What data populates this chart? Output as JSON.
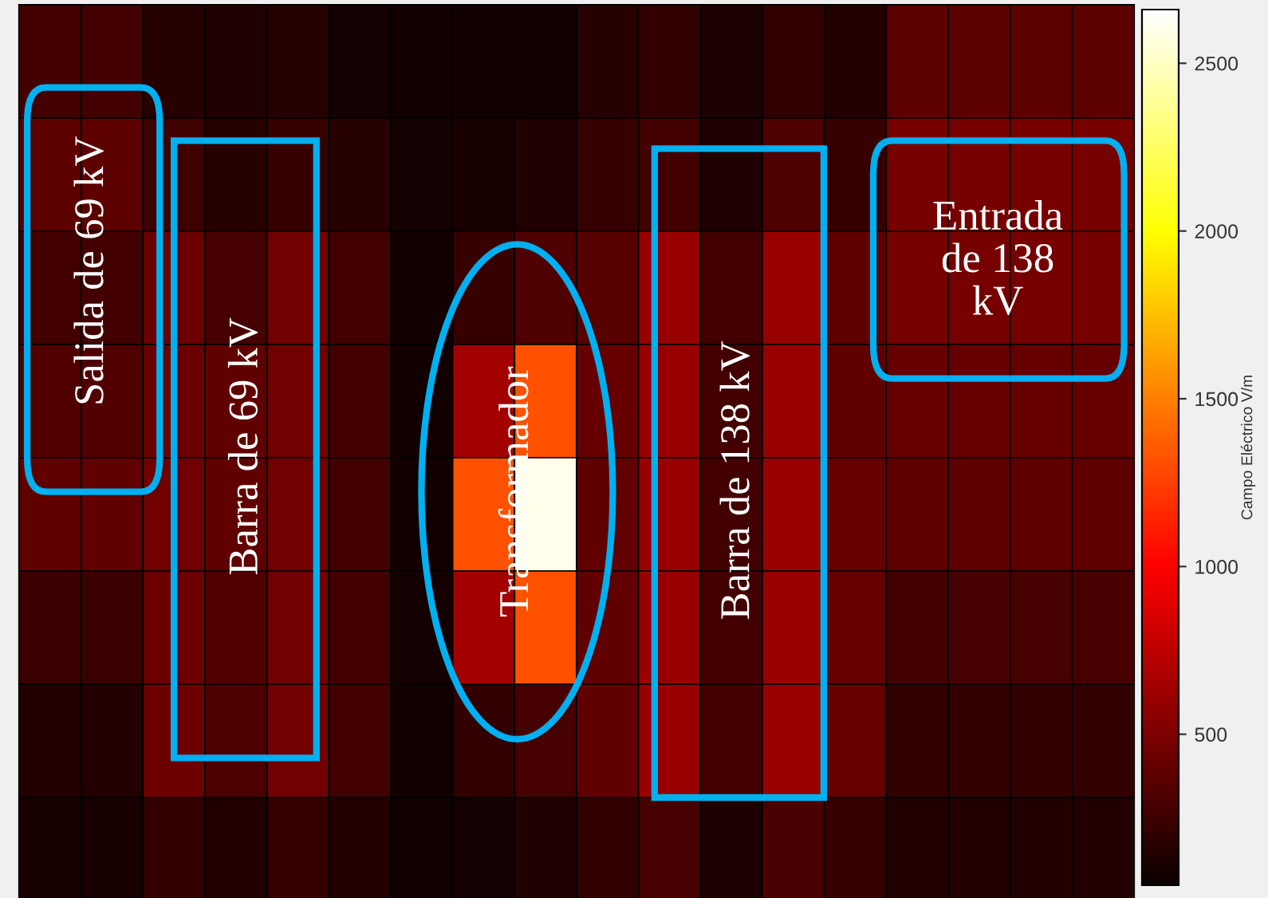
{
  "chart_data": {
    "type": "heatmap",
    "categories": [
      null,
      null,
      null,
      null,
      null,
      null,
      null,
      null,
      null,
      null,
      null,
      null,
      null,
      null,
      null,
      null,
      null,
      null
    ],
    "y_categories": [
      null,
      null,
      null,
      null,
      null,
      null,
      null,
      null
    ],
    "cells": [
      [
        270,
        270,
        170,
        140,
        170,
        100,
        90,
        90,
        90,
        170,
        210,
        130,
        210,
        150,
        370,
        370,
        370,
        370
      ],
      [
        370,
        370,
        260,
        170,
        230,
        170,
        100,
        110,
        140,
        230,
        270,
        140,
        320,
        230,
        470,
        470,
        470,
        470
      ],
      [
        270,
        270,
        430,
        290,
        450,
        270,
        90,
        230,
        320,
        350,
        610,
        270,
        610,
        390,
        470,
        470,
        470,
        470
      ],
      [
        330,
        330,
        430,
        390,
        450,
        270,
        90,
        650,
        1320,
        410,
        610,
        270,
        610,
        390,
        410,
        410,
        410,
        410
      ],
      [
        390,
        390,
        450,
        390,
        450,
        270,
        90,
        1320,
        2600,
        390,
        610,
        270,
        610,
        410,
        380,
        380,
        380,
        380
      ],
      [
        240,
        240,
        430,
        330,
        450,
        270,
        100,
        650,
        1320,
        390,
        610,
        270,
        610,
        410,
        270,
        290,
        290,
        290
      ],
      [
        150,
        150,
        430,
        310,
        450,
        270,
        90,
        210,
        290,
        390,
        610,
        270,
        610,
        410,
        210,
        210,
        210,
        210
      ],
      [
        110,
        110,
        210,
        150,
        230,
        150,
        80,
        100,
        140,
        210,
        290,
        130,
        300,
        230,
        150,
        150,
        150,
        150
      ]
    ],
    "clim": [
      50,
      2660
    ],
    "cticks": [
      500,
      1000,
      1500,
      2000,
      2500
    ],
    "clabel": "Campo Eléctrico V/m",
    "annotations": [
      "Salida de 69 kV",
      "Barra de 69 kV",
      "Transformador",
      "Barra de 138 kV",
      "Entrada\nde 138\nkV"
    ]
  }
}
